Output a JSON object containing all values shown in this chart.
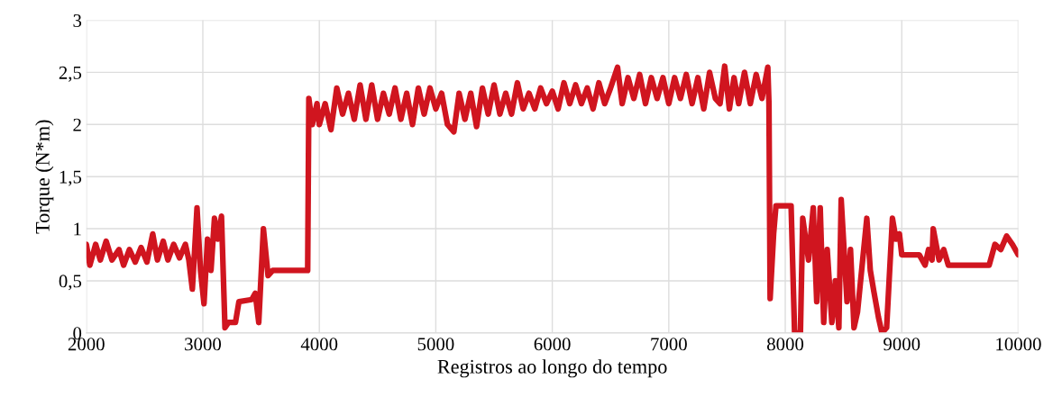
{
  "chart_data": {
    "type": "line",
    "xlabel": "Registros ao longo do tempo",
    "ylabel": "Torque (N*m)",
    "xlim": [
      2000,
      10000
    ],
    "xticks": [
      2000,
      3000,
      4000,
      5000,
      6000,
      7000,
      8000,
      9000,
      10000
    ],
    "ylim": [
      0,
      3
    ],
    "yticks": [
      0,
      {
        "value": 0.5,
        "label": "0,5"
      },
      1,
      {
        "value": 1.5,
        "label": "1,5"
      },
      2,
      {
        "value": 2.5,
        "label": "2,5"
      },
      3
    ],
    "grid": true,
    "legend": false,
    "line_style": "solid",
    "series": [
      {
        "color": "#d0151f",
        "x": [
          2000,
          2030,
          2080,
          2120,
          2170,
          2220,
          2280,
          2320,
          2370,
          2420,
          2470,
          2520,
          2570,
          2610,
          2660,
          2700,
          2750,
          2800,
          2850,
          2880,
          2910,
          2930,
          2950,
          2980,
          3010,
          3040,
          3070,
          3100,
          3130,
          3160,
          3190,
          3220,
          3280,
          3310,
          3420,
          3450,
          3480,
          3520,
          3560,
          3600,
          3900,
          3910,
          3940,
          3980,
          4000,
          4050,
          4100,
          4150,
          4200,
          4250,
          4300,
          4350,
          4400,
          4450,
          4500,
          4550,
          4600,
          4650,
          4700,
          4750,
          4800,
          4850,
          4900,
          4950,
          5000,
          5050,
          5100,
          5155,
          5200,
          5250,
          5300,
          5350,
          5400,
          5450,
          5500,
          5550,
          5600,
          5650,
          5700,
          5750,
          5800,
          5850,
          5900,
          5950,
          6000,
          6050,
          6100,
          6150,
          6200,
          6250,
          6300,
          6350,
          6400,
          6450,
          6500,
          6560,
          6600,
          6650,
          6700,
          6750,
          6800,
          6850,
          6900,
          6950,
          7000,
          7050,
          7100,
          7150,
          7200,
          7250,
          7300,
          7350,
          7400,
          7440,
          7480,
          7520,
          7560,
          7600,
          7650,
          7700,
          7750,
          7800,
          7850,
          7860,
          7870,
          7900,
          7920,
          8050,
          8080,
          8130,
          8150,
          8200,
          8240,
          8270,
          8300,
          8330,
          8360,
          8400,
          8430,
          8460,
          8480,
          8530,
          8560,
          8590,
          8620,
          8700,
          8730,
          8760,
          8800,
          8830,
          8870,
          8920,
          8950,
          8980,
          9000,
          9150,
          9200,
          9230,
          9260,
          9270,
          9320,
          9360,
          9400,
          9750,
          9800,
          9850,
          9900,
          9950,
          10000
        ],
        "values": [
          0.85,
          0.65,
          0.85,
          0.7,
          0.88,
          0.7,
          0.8,
          0.65,
          0.8,
          0.68,
          0.82,
          0.68,
          0.95,
          0.7,
          0.88,
          0.7,
          0.85,
          0.72,
          0.85,
          0.7,
          0.42,
          0.8,
          1.2,
          0.6,
          0.28,
          0.9,
          0.6,
          1.1,
          0.9,
          1.12,
          0.05,
          0.1,
          0.1,
          0.3,
          0.32,
          0.38,
          0.1,
          1.0,
          0.55,
          0.6,
          0.6,
          2.25,
          2.0,
          2.2,
          2.0,
          2.2,
          1.95,
          2.35,
          2.1,
          2.3,
          2.05,
          2.38,
          2.05,
          2.38,
          2.05,
          2.3,
          2.1,
          2.35,
          2.05,
          2.3,
          2.0,
          2.35,
          2.1,
          2.35,
          2.15,
          2.3,
          2.0,
          1.93,
          2.3,
          2.05,
          2.3,
          1.98,
          2.35,
          2.1,
          2.38,
          2.1,
          2.3,
          2.1,
          2.4,
          2.15,
          2.3,
          2.15,
          2.35,
          2.2,
          2.32,
          2.15,
          2.4,
          2.2,
          2.38,
          2.2,
          2.35,
          2.15,
          2.4,
          2.2,
          2.35,
          2.55,
          2.2,
          2.45,
          2.25,
          2.48,
          2.2,
          2.45,
          2.25,
          2.45,
          2.2,
          2.45,
          2.25,
          2.48,
          2.2,
          2.45,
          2.15,
          2.5,
          2.25,
          2.2,
          2.56,
          2.15,
          2.45,
          2.2,
          2.5,
          2.2,
          2.48,
          2.25,
          2.55,
          2.2,
          0.33,
          0.95,
          1.22,
          1.22,
          0.0,
          0.0,
          1.1,
          0.7,
          1.2,
          0.3,
          1.2,
          0.1,
          0.8,
          0.1,
          0.5,
          0.05,
          1.28,
          0.3,
          0.8,
          0.05,
          0.2,
          1.1,
          0.6,
          0.4,
          0.15,
          0.0,
          0.05,
          1.1,
          0.9,
          0.95,
          0.75,
          0.75,
          0.65,
          0.8,
          0.7,
          1.0,
          0.7,
          0.8,
          0.65,
          0.65,
          0.85,
          0.8,
          0.93,
          0.85,
          0.75
        ]
      }
    ]
  }
}
